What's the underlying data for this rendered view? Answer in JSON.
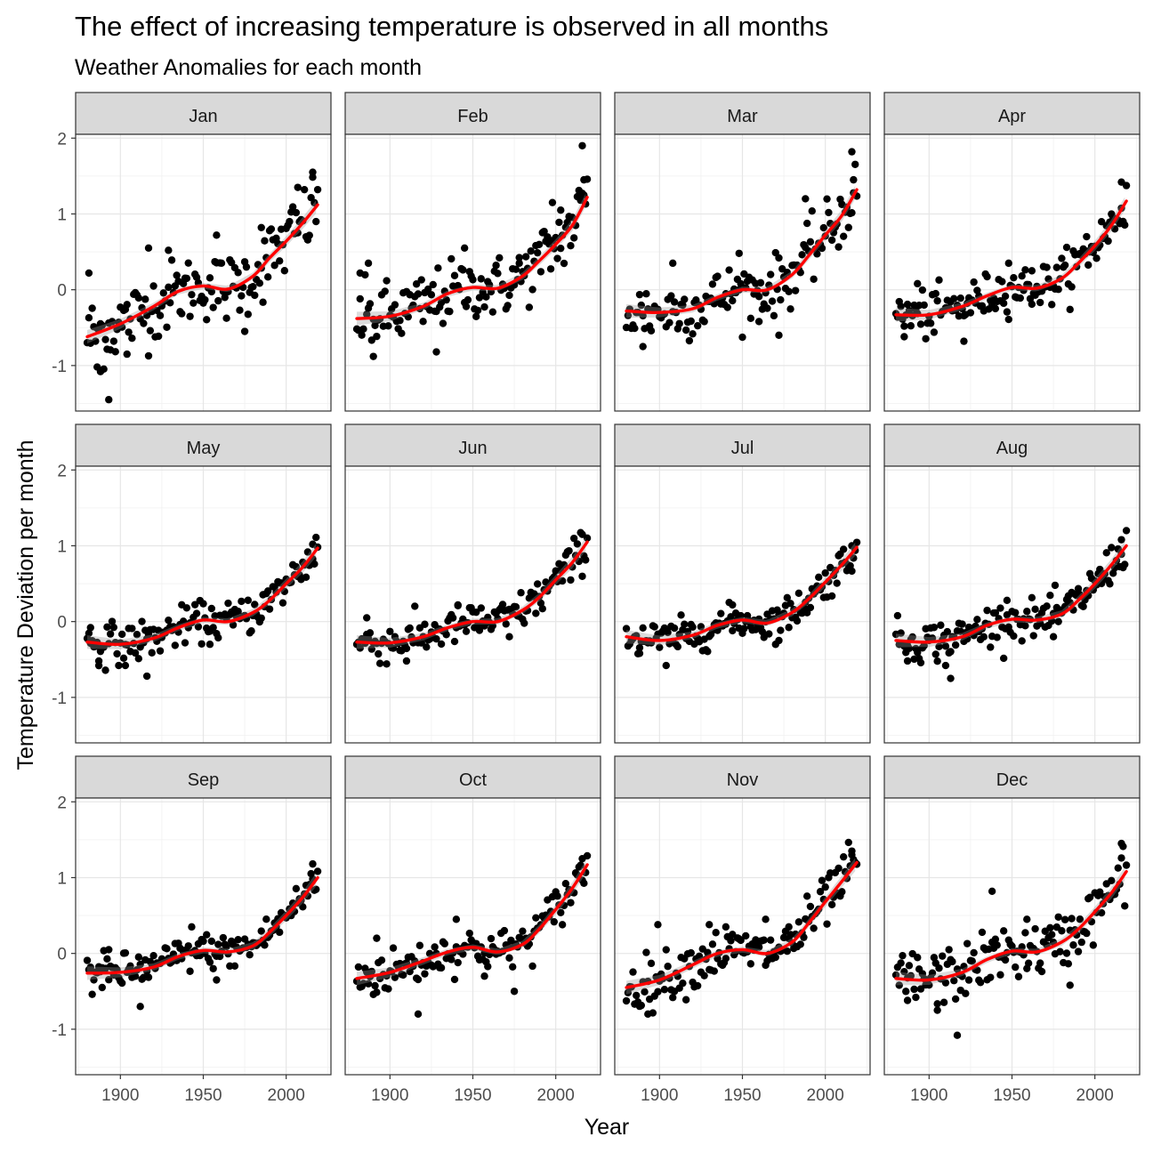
{
  "chart_data": {
    "type": "scatter",
    "title": "The effect of increasing temperature is observed in all months",
    "subtitle": "Weather Anomalies for each month",
    "xlabel": "Year",
    "ylabel": "Temperature Deviation per month",
    "xlim": [
      1873,
      2027
    ],
    "ylim": [
      -1.6,
      2.05
    ],
    "x_ticks": [
      1900,
      1950,
      2000
    ],
    "y_ticks": [
      -1,
      0,
      1,
      2
    ],
    "grid": true,
    "legend": "none",
    "point_color": "#000000",
    "smooth_color": "#ff0000",
    "ribbon_color": "#999999",
    "years": [
      1880,
      2019
    ],
    "facets": [
      {
        "name": "Jan",
        "smooth": [
          [
            1880,
            -0.62
          ],
          [
            1900,
            -0.45
          ],
          [
            1920,
            -0.22
          ],
          [
            1935,
            -0.02
          ],
          [
            1950,
            0.05
          ],
          [
            1965,
            0.01
          ],
          [
            1980,
            0.18
          ],
          [
            1990,
            0.42
          ],
          [
            2000,
            0.64
          ],
          [
            2010,
            0.88
          ],
          [
            2019,
            1.12
          ]
        ],
        "outliers": [
          [
            1881,
            0.22
          ],
          [
            1886,
            -1.02
          ],
          [
            1888,
            -1.08
          ],
          [
            1893,
            -1.45
          ],
          [
            1904,
            -0.85
          ],
          [
            1917,
            0.55
          ],
          [
            1929,
            0.52
          ],
          [
            1958,
            0.72
          ],
          [
            1975,
            -0.55
          ],
          [
            1985,
            0.82
          ],
          [
            2007,
            1.35
          ],
          [
            2016,
            1.55
          ]
        ]
      },
      {
        "name": "Feb",
        "smooth": [
          [
            1880,
            -0.38
          ],
          [
            1900,
            -0.35
          ],
          [
            1920,
            -0.22
          ],
          [
            1935,
            -0.05
          ],
          [
            1950,
            0.03
          ],
          [
            1965,
            0.02
          ],
          [
            1980,
            0.18
          ],
          [
            1990,
            0.38
          ],
          [
            2000,
            0.6
          ],
          [
            2010,
            0.85
          ],
          [
            2019,
            1.22
          ]
        ],
        "outliers": [
          [
            1882,
            0.22
          ],
          [
            1887,
            0.35
          ],
          [
            1890,
            -0.88
          ],
          [
            1928,
            -0.82
          ],
          [
            1945,
            0.55
          ],
          [
            1978,
            0.35
          ],
          [
            1998,
            1.15
          ],
          [
            2003,
            1.05
          ],
          [
            2016,
            1.9
          ],
          [
            2017,
            1.45
          ]
        ]
      },
      {
        "name": "Mar",
        "smooth": [
          [
            1880,
            -0.28
          ],
          [
            1900,
            -0.3
          ],
          [
            1920,
            -0.25
          ],
          [
            1935,
            -0.1
          ],
          [
            1950,
            0.0
          ],
          [
            1965,
            0.0
          ],
          [
            1980,
            0.2
          ],
          [
            1990,
            0.45
          ],
          [
            2000,
            0.72
          ],
          [
            2010,
            0.98
          ],
          [
            2019,
            1.32
          ]
        ],
        "outliers": [
          [
            1890,
            -0.75
          ],
          [
            1908,
            0.35
          ],
          [
            1948,
            0.48
          ],
          [
            1960,
            -0.42
          ],
          [
            1972,
            -0.6
          ],
          [
            1988,
            1.2
          ],
          [
            2016,
            1.82
          ],
          [
            2017,
            1.45
          ]
        ]
      },
      {
        "name": "Apr",
        "smooth": [
          [
            1880,
            -0.33
          ],
          [
            1900,
            -0.33
          ],
          [
            1920,
            -0.22
          ],
          [
            1935,
            -0.08
          ],
          [
            1950,
            0.03
          ],
          [
            1965,
            0.02
          ],
          [
            1980,
            0.15
          ],
          [
            1990,
            0.35
          ],
          [
            2000,
            0.58
          ],
          [
            2010,
            0.85
          ],
          [
            2019,
            1.17
          ]
        ],
        "outliers": [
          [
            1885,
            -0.62
          ],
          [
            1893,
            0.08
          ],
          [
            1921,
            -0.68
          ],
          [
            1948,
            0.35
          ],
          [
            1962,
            0.25
          ],
          [
            1995,
            0.7
          ],
          [
            2016,
            1.42
          ]
        ]
      },
      {
        "name": "May",
        "smooth": [
          [
            1880,
            -0.27
          ],
          [
            1900,
            -0.3
          ],
          [
            1920,
            -0.22
          ],
          [
            1935,
            -0.08
          ],
          [
            1950,
            0.02
          ],
          [
            1965,
            0.0
          ],
          [
            1980,
            0.12
          ],
          [
            1990,
            0.28
          ],
          [
            2000,
            0.5
          ],
          [
            2010,
            0.72
          ],
          [
            2019,
            0.97
          ]
        ],
        "outliers": [
          [
            1882,
            -0.08
          ],
          [
            1887,
            -0.52
          ],
          [
            1903,
            -0.58
          ],
          [
            1916,
            -0.72
          ],
          [
            1954,
            -0.3
          ],
          [
            2016,
            1.02
          ]
        ]
      },
      {
        "name": "Jun",
        "smooth": [
          [
            1880,
            -0.27
          ],
          [
            1900,
            -0.28
          ],
          [
            1920,
            -0.2
          ],
          [
            1935,
            -0.08
          ],
          [
            1950,
            0.0
          ],
          [
            1965,
            0.0
          ],
          [
            1980,
            0.15
          ],
          [
            1990,
            0.32
          ],
          [
            2000,
            0.55
          ],
          [
            2010,
            0.78
          ],
          [
            2019,
            1.05
          ]
        ],
        "outliers": [
          [
            1886,
            0.05
          ],
          [
            1910,
            -0.52
          ],
          [
            1941,
            0.22
          ],
          [
            1972,
            -0.2
          ],
          [
            2016,
            1.15
          ]
        ]
      },
      {
        "name": "Jul",
        "smooth": [
          [
            1880,
            -0.2
          ],
          [
            1900,
            -0.25
          ],
          [
            1920,
            -0.18
          ],
          [
            1935,
            -0.05
          ],
          [
            1950,
            0.02
          ],
          [
            1965,
            -0.02
          ],
          [
            1980,
            0.12
          ],
          [
            1990,
            0.3
          ],
          [
            2000,
            0.52
          ],
          [
            2010,
            0.75
          ],
          [
            2019,
            0.98
          ]
        ],
        "outliers": [
          [
            1888,
            -0.42
          ],
          [
            1904,
            -0.58
          ],
          [
            1944,
            0.22
          ],
          [
            1972,
            -0.25
          ],
          [
            2016,
            1.0
          ]
        ]
      },
      {
        "name": "Aug",
        "smooth": [
          [
            1880,
            -0.25
          ],
          [
            1900,
            -0.27
          ],
          [
            1920,
            -0.2
          ],
          [
            1935,
            -0.05
          ],
          [
            1950,
            0.03
          ],
          [
            1965,
            0.02
          ],
          [
            1980,
            0.1
          ],
          [
            1990,
            0.28
          ],
          [
            2000,
            0.5
          ],
          [
            2010,
            0.75
          ],
          [
            2019,
            1.0
          ]
        ],
        "outliers": [
          [
            1887,
            -0.52
          ],
          [
            1910,
            -0.58
          ],
          [
            1913,
            -0.75
          ],
          [
            1947,
            0.28
          ],
          [
            1975,
            -0.2
          ],
          [
            2016,
            1.08
          ]
        ]
      },
      {
        "name": "Sep",
        "smooth": [
          [
            1880,
            -0.26
          ],
          [
            1900,
            -0.25
          ],
          [
            1920,
            -0.18
          ],
          [
            1935,
            -0.04
          ],
          [
            1950,
            0.04
          ],
          [
            1965,
            0.02
          ],
          [
            1980,
            0.1
          ],
          [
            1990,
            0.28
          ],
          [
            2000,
            0.5
          ],
          [
            2010,
            0.74
          ],
          [
            2019,
            1.0
          ]
        ],
        "outliers": [
          [
            1889,
            -0.45
          ],
          [
            1893,
            0.05
          ],
          [
            1912,
            -0.7
          ],
          [
            1943,
            0.35
          ],
          [
            1958,
            -0.35
          ],
          [
            2016,
            1.18
          ]
        ]
      },
      {
        "name": "Oct",
        "smooth": [
          [
            1880,
            -0.33
          ],
          [
            1900,
            -0.25
          ],
          [
            1920,
            -0.1
          ],
          [
            1935,
            0.02
          ],
          [
            1950,
            0.08
          ],
          [
            1965,
            0.02
          ],
          [
            1980,
            0.12
          ],
          [
            1990,
            0.32
          ],
          [
            2000,
            0.58
          ],
          [
            2010,
            0.86
          ],
          [
            2019,
            1.17
          ]
        ],
        "outliers": [
          [
            1892,
            0.2
          ],
          [
            1917,
            -0.8
          ],
          [
            1940,
            0.45
          ],
          [
            1957,
            -0.3
          ],
          [
            1975,
            -0.5
          ],
          [
            2016,
            1.25
          ]
        ]
      },
      {
        "name": "Nov",
        "smooth": [
          [
            1880,
            -0.45
          ],
          [
            1900,
            -0.35
          ],
          [
            1920,
            -0.15
          ],
          [
            1935,
            0.0
          ],
          [
            1950,
            0.05
          ],
          [
            1965,
            0.0
          ],
          [
            1980,
            0.15
          ],
          [
            1990,
            0.4
          ],
          [
            2000,
            0.68
          ],
          [
            2010,
            0.95
          ],
          [
            2019,
            1.2
          ]
        ],
        "outliers": [
          [
            1893,
            -0.8
          ],
          [
            1899,
            0.38
          ],
          [
            1930,
            0.38
          ],
          [
            1940,
            0.35
          ],
          [
            1964,
            0.45
          ],
          [
            1978,
            0.35
          ],
          [
            2016,
            1.35
          ]
        ]
      },
      {
        "name": "Dec",
        "smooth": [
          [
            1880,
            -0.33
          ],
          [
            1900,
            -0.35
          ],
          [
            1920,
            -0.25
          ],
          [
            1935,
            -0.08
          ],
          [
            1950,
            0.03
          ],
          [
            1965,
            0.02
          ],
          [
            1980,
            0.15
          ],
          [
            1990,
            0.32
          ],
          [
            2000,
            0.55
          ],
          [
            2010,
            0.8
          ],
          [
            2019,
            1.08
          ]
        ],
        "outliers": [
          [
            1887,
            -0.62
          ],
          [
            1905,
            -0.75
          ],
          [
            1917,
            -1.08
          ],
          [
            1938,
            0.82
          ],
          [
            1959,
            0.45
          ],
          [
            1985,
            -0.42
          ],
          [
            2016,
            1.45
          ]
        ]
      }
    ]
  }
}
